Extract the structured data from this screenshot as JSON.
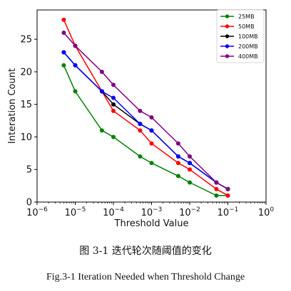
{
  "chart_data": {
    "type": "line",
    "xlabel": "Threshold Value",
    "ylabel": "Interation Count",
    "xscale": "log",
    "xlim": [
      1e-06,
      1
    ],
    "ylim": [
      0,
      29.5
    ],
    "xticks": [
      1e-06,
      1e-05,
      0.0001,
      0.001,
      0.01,
      0.1,
      1
    ],
    "xtick_labels": [
      [
        "10",
        "−6"
      ],
      [
        "10",
        "−5"
      ],
      [
        "10",
        "−4"
      ],
      [
        "10",
        "−3"
      ],
      [
        "10",
        "−2"
      ],
      [
        "10",
        "−1"
      ],
      [
        "10",
        "0"
      ]
    ],
    "yticks": [
      0,
      5,
      10,
      15,
      20,
      25
    ],
    "ytick_labels": [
      "0",
      "5",
      "10",
      "15",
      "20",
      "25"
    ],
    "legend_position": "top-right",
    "x": [
      5e-06,
      1e-05,
      5e-05,
      0.0001,
      0.0005,
      0.001,
      0.005,
      0.01,
      0.05,
      0.1
    ],
    "series": [
      {
        "name": "25MB",
        "color": "#008000",
        "values": [
          21,
          17,
          11,
          10,
          7,
          6,
          4,
          3,
          1,
          1
        ]
      },
      {
        "name": "50MB",
        "color": "#ff0000",
        "values": [
          28,
          24,
          17,
          14,
          11,
          9,
          6,
          5,
          2,
          1
        ]
      },
      {
        "name": "100MB",
        "color": "#000000",
        "values": [
          23,
          21,
          17,
          15,
          12,
          11,
          7,
          6,
          3,
          2
        ]
      },
      {
        "name": "200MB",
        "color": "#0000ff",
        "values": [
          23,
          21,
          17,
          16,
          12,
          11,
          7,
          6,
          3,
          2
        ]
      },
      {
        "name": "400MB",
        "color": "#800080",
        "values": [
          26,
          24,
          20,
          18,
          14,
          13,
          9,
          7,
          3,
          2
        ]
      }
    ]
  },
  "captions": {
    "chinese": "图 3-1  迭代轮次随阈值的变化",
    "english": "Fig.3-1  Iteration Needed when Threshold Change"
  }
}
